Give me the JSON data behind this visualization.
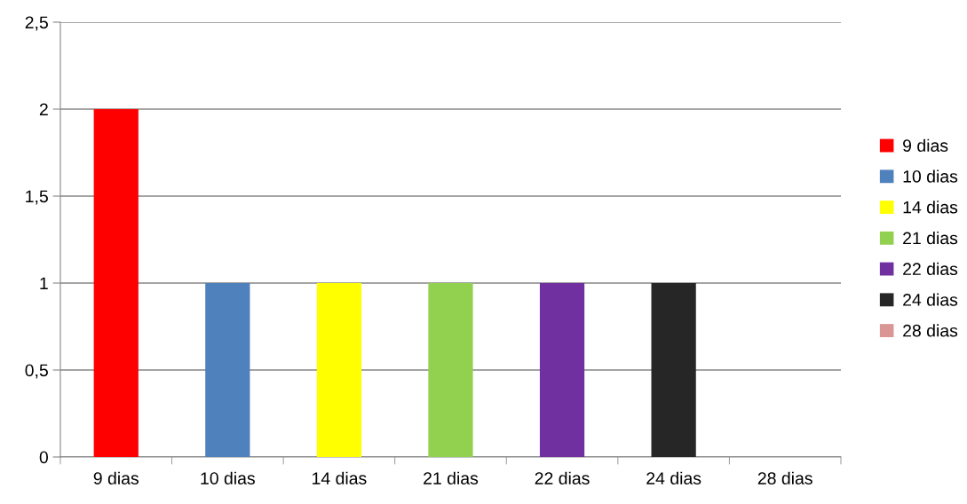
{
  "chart_data": {
    "type": "bar",
    "categories": [
      "9 dias",
      "10 dias",
      "14 dias",
      "21 dias",
      "22 dias",
      "24 dias",
      "28 dias"
    ],
    "series": [
      {
        "name": "9 dias",
        "color": "#ff0000",
        "values": [
          2,
          null,
          null,
          null,
          null,
          null,
          null
        ]
      },
      {
        "name": "10 dias",
        "color": "#4f81bd",
        "values": [
          null,
          1,
          null,
          null,
          null,
          null,
          null
        ]
      },
      {
        "name": "14 dias",
        "color": "#ffff00",
        "values": [
          null,
          null,
          1,
          null,
          null,
          null,
          null
        ]
      },
      {
        "name": "21 dias",
        "color": "#92d050",
        "values": [
          null,
          null,
          null,
          1,
          null,
          null,
          null
        ]
      },
      {
        "name": "22 dias",
        "color": "#7030a0",
        "values": [
          null,
          null,
          null,
          null,
          1,
          null,
          null
        ]
      },
      {
        "name": "24 dias",
        "color": "#262626",
        "values": [
          null,
          null,
          null,
          null,
          null,
          1,
          null
        ]
      },
      {
        "name": "28 dias",
        "color": "#d99694",
        "values": [
          null,
          null,
          null,
          null,
          null,
          null,
          0
        ]
      }
    ],
    "ylim": [
      0,
      2.5
    ],
    "yticks": [
      0,
      {
        "value": 0.5,
        "label": "0,5"
      },
      1,
      {
        "value": 1.5,
        "label": "1,5"
      },
      2,
      {
        "value": 2.5,
        "label": "2,5"
      }
    ],
    "grid": "y",
    "legend": "right"
  }
}
